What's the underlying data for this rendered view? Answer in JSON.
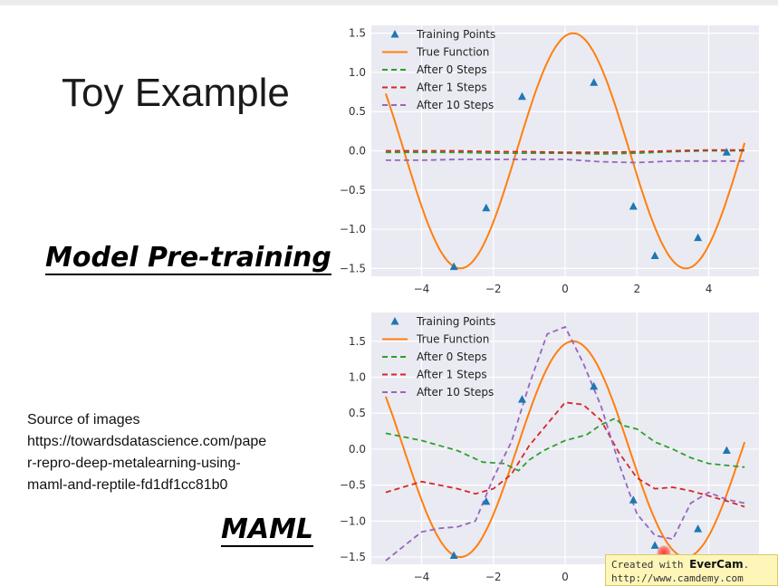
{
  "slide": {
    "title": "Toy Example",
    "heading_top": "Model Pre-training",
    "heading_bottom": "MAML",
    "source_lines": [
      "Source of images",
      "https://towardsdatascience.com/pape",
      "r-repro-deep-metalearning-using-",
      "maml-and-reptile-fd1df1cc81b0"
    ]
  },
  "watermark": {
    "prefix": "Created with ",
    "brand": "EverCam",
    "suffix": ".",
    "url": "http://www.camdemy.com"
  },
  "colors": {
    "background": "#eaeaf2",
    "grid": "#ffffff",
    "training_points": "#1f77b4",
    "true_function": "#ff7f0e",
    "after_0": "#2ca02c",
    "after_1": "#d62728",
    "after_10": "#9467bd"
  },
  "chart_data": [
    {
      "type": "line",
      "panel": "Model Pre-training",
      "xlim": [
        -5.4,
        5.4
      ],
      "ylim": [
        -1.6,
        1.6
      ],
      "xticks": [
        -4,
        -2,
        0,
        2,
        4
      ],
      "yticks": [
        -1.5,
        -1.0,
        -0.5,
        0.0,
        0.5,
        1.0,
        1.5
      ],
      "grid": true,
      "legend": "top-left",
      "true_function": {
        "name": "True Function",
        "amplitude": 1.5,
        "phase": 1.35
      },
      "training_points": {
        "name": "Training Points",
        "x": [
          -3.1,
          -2.2,
          -1.2,
          0.8,
          1.9,
          2.5,
          3.7,
          4.5
        ],
        "y": [
          -1.48,
          -0.73,
          0.69,
          0.87,
          -0.71,
          -1.34,
          -1.11,
          -0.02
        ]
      },
      "series": [
        {
          "name": "After 0 Steps",
          "key": "after_0",
          "x": [
            -5,
            -4,
            -3,
            -2,
            -1,
            0,
            1,
            2,
            3,
            4,
            5
          ],
          "y": [
            -0.02,
            -0.02,
            -0.02,
            -0.03,
            -0.03,
            -0.03,
            -0.04,
            -0.03,
            -0.01,
            0.0,
            0.0
          ]
        },
        {
          "name": "After 1 Steps",
          "key": "after_1",
          "x": [
            -5,
            -4,
            -3,
            -2,
            -1,
            0,
            1,
            2,
            3,
            4,
            5
          ],
          "y": [
            0.0,
            0.0,
            0.0,
            -0.01,
            -0.01,
            -0.02,
            -0.02,
            -0.01,
            0.0,
            0.01,
            0.01
          ]
        },
        {
          "name": "After 10 Steps",
          "key": "after_10",
          "x": [
            -5,
            -4,
            -3,
            -2,
            -1,
            0,
            1,
            2,
            3,
            4,
            5
          ],
          "y": [
            -0.12,
            -0.12,
            -0.11,
            -0.11,
            -0.11,
            -0.11,
            -0.14,
            -0.15,
            -0.13,
            -0.13,
            -0.13
          ]
        }
      ]
    },
    {
      "type": "line",
      "panel": "MAML",
      "xlim": [
        -5.4,
        5.4
      ],
      "ylim": [
        -1.6,
        1.9
      ],
      "xticks": [
        -4,
        -2,
        0,
        2,
        4
      ],
      "yticks": [
        -1.5,
        -1.0,
        -0.5,
        0.0,
        0.5,
        1.0,
        1.5
      ],
      "grid": true,
      "legend": "top-left",
      "true_function": {
        "name": "True Function",
        "amplitude": 1.5,
        "phase": 1.35
      },
      "training_points": {
        "name": "Training Points",
        "x": [
          -3.1,
          -2.2,
          -1.2,
          0.8,
          1.9,
          2.5,
          3.7,
          4.5
        ],
        "y": [
          -1.48,
          -0.73,
          0.69,
          0.87,
          -0.71,
          -1.34,
          -1.11,
          -0.02
        ]
      },
      "series": [
        {
          "name": "After 0 Steps",
          "key": "after_0",
          "x": [
            -5,
            -4,
            -3,
            -2.3,
            -1.7,
            -1.3,
            -1,
            -0.6,
            0,
            0.6,
            1,
            1.4,
            1.6,
            2,
            2.5,
            3,
            3.5,
            4,
            5
          ],
          "y": [
            0.22,
            0.12,
            -0.02,
            -0.18,
            -0.2,
            -0.3,
            -0.15,
            -0.02,
            0.12,
            0.2,
            0.34,
            0.43,
            0.33,
            0.28,
            0.1,
            0.0,
            -0.12,
            -0.2,
            -0.25
          ]
        },
        {
          "name": "After 1 Steps",
          "key": "after_1",
          "x": [
            -5,
            -4,
            -3,
            -2.5,
            -2,
            -1.5,
            -1,
            -0.5,
            0,
            0.5,
            1,
            1.5,
            2,
            2.5,
            3,
            3.5,
            4,
            4.5,
            5
          ],
          "y": [
            -0.6,
            -0.45,
            -0.55,
            -0.62,
            -0.55,
            -0.35,
            0.05,
            0.35,
            0.65,
            0.62,
            0.4,
            -0.05,
            -0.4,
            -0.55,
            -0.53,
            -0.58,
            -0.65,
            -0.72,
            -0.8
          ]
        },
        {
          "name": "After 10 Steps",
          "key": "after_10",
          "x": [
            -5,
            -4.5,
            -4,
            -3.5,
            -3,
            -2.5,
            -2,
            -1.5,
            -1,
            -0.5,
            0,
            0.5,
            1,
            1.5,
            2,
            2.5,
            3,
            3.5,
            4,
            4.5,
            5
          ],
          "y": [
            -1.55,
            -1.35,
            -1.15,
            -1.1,
            -1.08,
            -1.0,
            -0.4,
            0.1,
            0.9,
            1.6,
            1.7,
            1.2,
            0.6,
            -0.2,
            -0.9,
            -1.2,
            -1.25,
            -0.75,
            -0.6,
            -0.7,
            -0.75
          ]
        }
      ]
    }
  ]
}
